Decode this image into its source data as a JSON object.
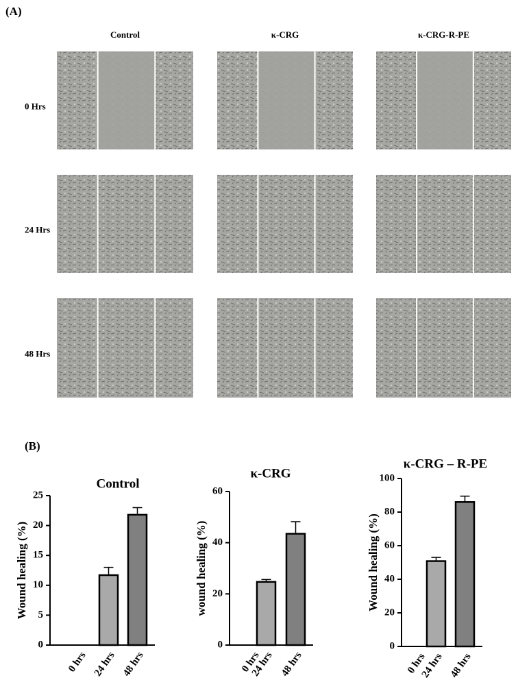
{
  "panel_a": {
    "label": "(A)",
    "columns": [
      "Control",
      "κ-CRG",
      "κ-CRG-R-PE"
    ],
    "rows": [
      "0 Hrs",
      "24 Hrs",
      "48 Hrs"
    ]
  },
  "panel_b": {
    "label": "(B)"
  },
  "chart_data": [
    {
      "type": "bar",
      "title": "Control",
      "y_label": "Wound healing (%)",
      "categories": [
        "0 hrs",
        "24 hrs",
        "48 hrs"
      ],
      "values": [
        0,
        11.7,
        21.8
      ],
      "errors": [
        0,
        1.3,
        1.2
      ],
      "colors": [
        "#a9a9a9",
        "#a9a9a9",
        "#808080"
      ],
      "ylim": [
        0,
        25
      ],
      "yticks": [
        0,
        5,
        10,
        15,
        20,
        25
      ]
    },
    {
      "type": "bar",
      "title": "κ-CRG",
      "y_label": "wound healing (%)",
      "categories": [
        "0 hrs",
        "24 hrs",
        "48 hrs"
      ],
      "values": [
        0,
        24.7,
        43.5
      ],
      "errors": [
        0,
        0.9,
        4.7
      ],
      "colors": [
        "#a9a9a9",
        "#a9a9a9",
        "#808080"
      ],
      "ylim": [
        0,
        60
      ],
      "yticks": [
        0,
        20,
        40,
        60
      ]
    },
    {
      "type": "bar",
      "title": "κ-CRG – R-PE",
      "y_label": "Wound healing (%)",
      "categories": [
        "0 hrs",
        "24 hrs",
        "48 hrs"
      ],
      "values": [
        0,
        50.8,
        86
      ],
      "errors": [
        0,
        2.2,
        3.5
      ],
      "colors": [
        "#a9a9a9",
        "#a9a9a9",
        "#808080"
      ],
      "ylim": [
        0,
        100
      ],
      "yticks": [
        0,
        20,
        40,
        60,
        80,
        100
      ]
    }
  ]
}
